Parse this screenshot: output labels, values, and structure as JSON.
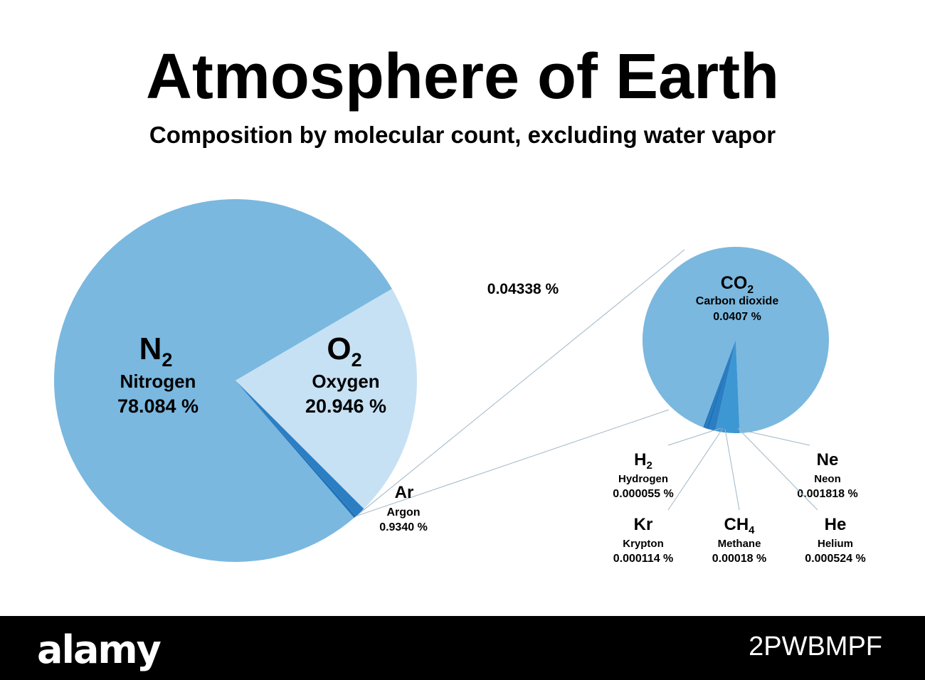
{
  "title": "Atmosphere of Earth",
  "subtitle": "Composition by molecular count, excluding water vapor",
  "colors": {
    "nitrogen": "#7ab8df",
    "oxygen": "#c6e1f4",
    "argon": "#2c7ec3",
    "connector": "#9fb7c6",
    "trace_dark": "#1f72b8",
    "trace_mid": "#3d97d3"
  },
  "chart_data": [
    {
      "type": "pie",
      "slices": [
        {
          "formula": "N",
          "sub": "2",
          "name": "Nitrogen",
          "value": 78.084,
          "value_label": "78.084 %"
        },
        {
          "formula": "O",
          "sub": "2",
          "name": "Oxygen",
          "value": 20.946,
          "value_label": "20.946 %"
        },
        {
          "formula": "Ar",
          "sub": "",
          "name": "Argon",
          "value": 0.934,
          "value_label": "0.9340 %"
        },
        {
          "formula": "",
          "sub": "",
          "name": "",
          "value": 0.04338,
          "value_label": "0.04338 %"
        }
      ]
    },
    {
      "type": "pie",
      "slices": [
        {
          "formula": "CO",
          "sub": "2",
          "name": "Carbon dioxide",
          "value": 0.0407,
          "value_label": "0.0407 %"
        },
        {
          "formula": "Ne",
          "sub": "",
          "name": "Neon",
          "value": 0.001818,
          "value_label": "0.001818 %"
        },
        {
          "formula": "He",
          "sub": "",
          "name": "Helium",
          "value": 0.000524,
          "value_label": "0.000524 %"
        },
        {
          "formula": "CH",
          "sub": "4",
          "name": "Methane",
          "value": 0.00018,
          "value_label": "0.00018 %"
        },
        {
          "formula": "Kr",
          "sub": "",
          "name": "Krypton",
          "value": 0.000114,
          "value_label": "0.000114 %"
        },
        {
          "formula": "H",
          "sub": "2",
          "name": "Hydrogen",
          "value": 5.5e-05,
          "value_label": "0.000055 %"
        }
      ]
    }
  ],
  "footer": {
    "logo": "alamy",
    "image_id": "2PWBMPF"
  }
}
